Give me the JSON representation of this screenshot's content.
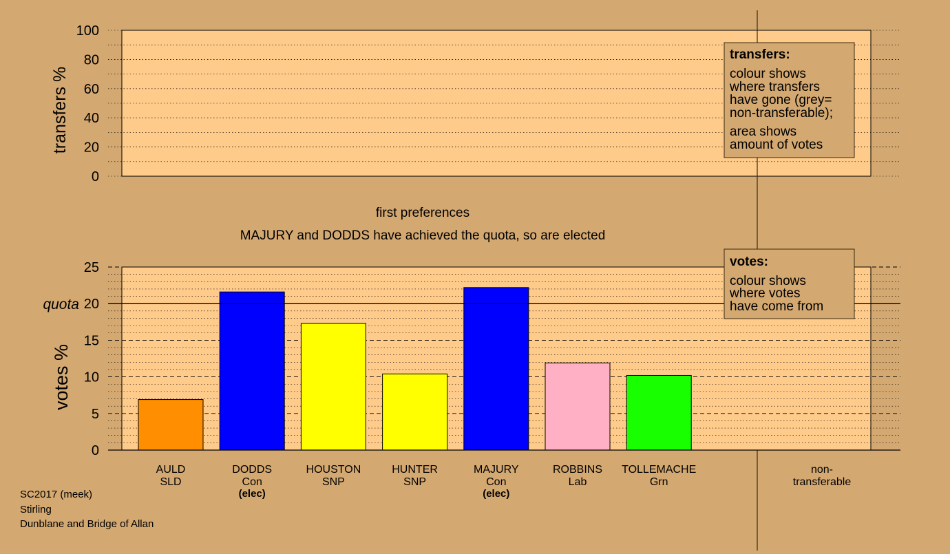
{
  "colors": {
    "background": "#d4a871",
    "plot_area": "#fecb8b",
    "SLD": "#ff8f00",
    "Con": "#0000ff",
    "SNP": "#ffff00",
    "Lab": "#ffb0c4",
    "Grn": "#18ff00",
    "legend_box": "#d4a871"
  },
  "top_panel": {
    "ylabel": "transfers %",
    "ticks": [
      "0",
      "20",
      "40",
      "60",
      "80",
      "100"
    ],
    "legend": {
      "title": "transfers:",
      "lines1": [
        "colour shows",
        "where transfers",
        "have gone (grey=",
        "non-transferable);"
      ],
      "lines2": [
        "area shows",
        "amount of votes"
      ]
    }
  },
  "stage_label": "first preferences",
  "status_message": "MAJURY and DODDS have achieved the quota, so are elected",
  "bottom_panel": {
    "ylabel": "votes %",
    "quota_label": "quota",
    "ticks": [
      "0",
      "5",
      "10",
      "15",
      "20",
      "25"
    ],
    "legend": {
      "title": "votes:",
      "lines": [
        "colour shows",
        "where votes",
        "have come from"
      ]
    }
  },
  "candidates": [
    {
      "name": "AULD",
      "party": "SLD",
      "elected": "",
      "color_key": "SLD"
    },
    {
      "name": "DODDS",
      "party": "Con",
      "elected": "(elec)",
      "color_key": "Con"
    },
    {
      "name": "HOUSTON",
      "party": "SNP",
      "elected": "",
      "color_key": "SNP"
    },
    {
      "name": "HUNTER",
      "party": "SNP",
      "elected": "",
      "color_key": "SNP"
    },
    {
      "name": "MAJURY",
      "party": "Con",
      "elected": "(elec)",
      "color_key": "Con"
    },
    {
      "name": "ROBBINS",
      "party": "Lab",
      "elected": "",
      "color_key": "Lab"
    },
    {
      "name": "TOLLEMACHE",
      "party": "Grn",
      "elected": "",
      "color_key": "Grn"
    }
  ],
  "nontransferable_label": [
    "non-",
    "transferable"
  ],
  "footer": [
    "SC2017 (meek)",
    "Stirling",
    "Dunblane and Bridge of Allan"
  ],
  "chart_data": [
    {
      "type": "bar",
      "title": "",
      "ylabel": "transfers %",
      "ylim": [
        0,
        100
      ],
      "categories": [],
      "values": []
    },
    {
      "type": "bar",
      "title": "first preferences",
      "ylabel": "votes %",
      "ylim": [
        0,
        25
      ],
      "quota": 20,
      "categories": [
        "AULD SLD",
        "DODDS Con",
        "HOUSTON SNP",
        "HUNTER SNP",
        "MAJURY Con",
        "ROBBINS Lab",
        "TOLLEMACHE Grn"
      ],
      "values": [
        6.9,
        21.6,
        17.3,
        10.4,
        22.2,
        11.9,
        10.2
      ],
      "nontransferable": 0
    }
  ]
}
